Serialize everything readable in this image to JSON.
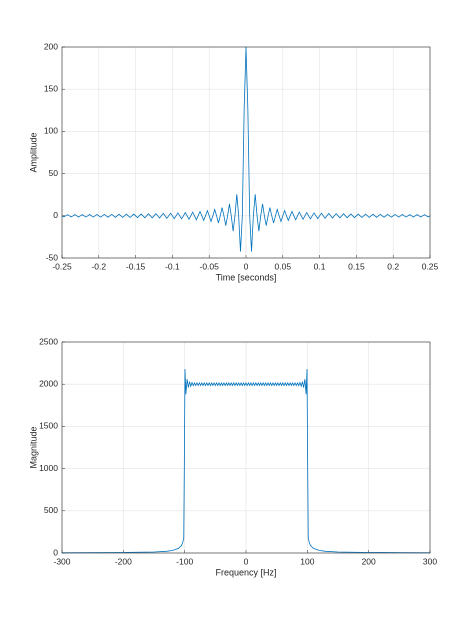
{
  "chart_data": [
    {
      "type": "line",
      "xlabel": "Time [seconds]",
      "ylabel": "Amplitude",
      "color": "#0072bd",
      "grid": true,
      "xlim": [
        -0.25,
        0.25
      ],
      "ylim": [
        -50,
        200
      ],
      "xticks": [
        -0.25,
        -0.2,
        -0.15,
        -0.1,
        -0.05,
        0,
        0.05,
        0.1,
        0.15,
        0.2,
        0.25
      ],
      "yticks": [
        -50,
        0,
        50,
        100,
        150,
        200
      ],
      "x": [
        -0.25,
        -0.2475,
        -0.245,
        -0.2425,
        -0.24,
        -0.2375,
        -0.235,
        -0.2325,
        -0.23,
        -0.2275,
        -0.225,
        -0.2225,
        -0.22,
        -0.2175,
        -0.215,
        -0.2125,
        -0.21,
        -0.2075,
        -0.205,
        -0.2025,
        -0.2,
        -0.1975,
        -0.195,
        -0.1925,
        -0.19,
        -0.1875,
        -0.185,
        -0.1825,
        -0.18,
        -0.1775,
        -0.175,
        -0.1725,
        -0.17,
        -0.1675,
        -0.165,
        -0.1625,
        -0.16,
        -0.1575,
        -0.155,
        -0.1525,
        -0.15,
        -0.1475,
        -0.145,
        -0.1425,
        -0.14,
        -0.1375,
        -0.135,
        -0.1325,
        -0.13,
        -0.1275,
        -0.125,
        -0.1225,
        -0.12,
        -0.1175,
        -0.115,
        -0.1125,
        -0.11,
        -0.1075,
        -0.105,
        -0.1025,
        -0.1,
        -0.0975,
        -0.095,
        -0.0925,
        -0.09,
        -0.0875,
        -0.085,
        -0.0825,
        -0.08,
        -0.0775,
        -0.075,
        -0.0725,
        -0.07,
        -0.0675,
        -0.065,
        -0.0625,
        -0.06,
        -0.0575,
        -0.055,
        -0.0525,
        -0.05,
        -0.0475,
        -0.045,
        -0.0425,
        -0.04,
        -0.0375,
        -0.035,
        -0.0325,
        -0.03,
        -0.0275,
        -0.025,
        -0.0225,
        -0.02,
        -0.0175,
        -0.015,
        -0.0125,
        -0.01,
        -0.0075,
        -0.005,
        -0.0025,
        0,
        0.0025,
        0.005,
        0.0075,
        0.01,
        0.0125,
        0.015,
        0.0175,
        0.02,
        0.0225,
        0.025,
        0.0275,
        0.03,
        0.0325,
        0.035,
        0.0375,
        0.04,
        0.0425,
        0.045,
        0.0475,
        0.05,
        0.0525,
        0.055,
        0.0575,
        0.06,
        0.0625,
        0.065,
        0.0675,
        0.07,
        0.0725,
        0.075,
        0.0775,
        0.08,
        0.0825,
        0.085,
        0.0875,
        0.09,
        0.0925,
        0.095,
        0.0975,
        0.1,
        0.1025,
        0.105,
        0.1075,
        0.11,
        0.1125,
        0.115,
        0.1175,
        0.12,
        0.1225,
        0.125,
        0.1275,
        0.13,
        0.1325,
        0.135,
        0.1375,
        0.14,
        0.1425,
        0.145,
        0.1475,
        0.15,
        0.1525,
        0.155,
        0.1575,
        0.16,
        0.1625,
        0.165,
        0.1675,
        0.17,
        0.1725,
        0.175,
        0.1775,
        0.18,
        0.1825,
        0.185,
        0.1875,
        0.19,
        0.1925,
        0.195,
        0.1975,
        0.2,
        0.2025,
        0.205,
        0.2075,
        0.21,
        0.2125,
        0.215,
        0.2175,
        0.22,
        0.2225,
        0.225,
        0.2275,
        0.23,
        0.2325,
        0.235,
        0.2375,
        0.24,
        0.2425,
        0.245,
        0.2475,
        0.25
      ],
      "values": [
        0,
        -1.3,
        0,
        1.3,
        0,
        -1.3,
        0,
        1.4,
        0,
        -1.4,
        0,
        1.4,
        0,
        -1.5,
        0,
        1.5,
        0,
        -1.5,
        0,
        1.6,
        0,
        -1.6,
        0,
        1.7,
        0,
        -1.7,
        0,
        1.7,
        0,
        -1.8,
        0,
        1.8,
        0,
        -1.9,
        0,
        2,
        0,
        -2,
        0,
        2.1,
        0,
        -2.2,
        0,
        2.2,
        0,
        -2.3,
        0,
        2.4,
        0,
        -2.5,
        0,
        2.6,
        0,
        -2.7,
        0,
        2.8,
        0,
        -3,
        0,
        3.1,
        0,
        -3.3,
        0,
        3.4,
        0,
        -3.6,
        0,
        3.9,
        0,
        -4.1,
        0,
        4.4,
        0,
        -4.7,
        0,
        5.1,
        0,
        -5.5,
        0,
        6.1,
        0,
        -6.7,
        0,
        7.5,
        0,
        -8.5,
        0,
        9.8,
        0,
        -11.6,
        0,
        14.1,
        0,
        -18.2,
        0,
        25.5,
        0,
        -42.4,
        0,
        127.3,
        200,
        127.3,
        0,
        -42.4,
        0,
        25.5,
        0,
        -18.2,
        0,
        14.1,
        0,
        -11.6,
        0,
        9.8,
        0,
        -8.5,
        0,
        7.5,
        0,
        -6.7,
        0,
        6.1,
        0,
        -5.5,
        0,
        5.1,
        0,
        -4.7,
        0,
        4.4,
        0,
        -4.1,
        0,
        3.9,
        0,
        -3.6,
        0,
        3.4,
        0,
        -3.3,
        0,
        3.1,
        0,
        -3,
        0,
        2.8,
        0,
        -2.7,
        0,
        2.6,
        0,
        -2.5,
        0,
        2.4,
        0,
        -2.3,
        0,
        2.2,
        0,
        -2.2,
        0,
        2.1,
        0,
        -2,
        0,
        2,
        0,
        -1.9,
        0,
        1.8,
        0,
        -1.8,
        0,
        1.7,
        0,
        -1.7,
        0,
        1.7,
        0,
        -1.6,
        0,
        1.6,
        0,
        -1.5,
        0,
        1.5,
        0,
        -1.5,
        0,
        1.4,
        0,
        -1.4,
        0,
        1.4,
        0,
        -1.3,
        0,
        1.3,
        0,
        -1.3,
        0
      ]
    },
    {
      "type": "line",
      "xlabel": "Frequency [Hz]",
      "ylabel": "Magnitude",
      "color": "#0072bd",
      "grid": true,
      "xlim": [
        -300,
        300
      ],
      "ylim": [
        0,
        2500
      ],
      "xticks": [
        -300,
        -200,
        -100,
        0,
        100,
        200,
        300
      ],
      "yticks": [
        0,
        500,
        1000,
        1500,
        2000,
        2500
      ],
      "x": [
        -300,
        -250,
        -200,
        -150,
        -130,
        -120,
        -110,
        -105,
        -103,
        -101.5,
        -100.5,
        -99.5,
        -98,
        -96,
        -94,
        -92,
        -90,
        -88,
        -86,
        -84,
        -82,
        -80,
        -78,
        -76,
        -74,
        -72,
        -70,
        -68,
        -66,
        -64,
        -62,
        -60,
        -58,
        -56,
        -54,
        -52,
        -50,
        -48,
        -46,
        -44,
        -42,
        -40,
        -38,
        -36,
        -34,
        -32,
        -30,
        -28,
        -26,
        -24,
        -22,
        -20,
        -18,
        -16,
        -14,
        -12,
        -10,
        -8,
        -6,
        -4,
        -2,
        0,
        2,
        4,
        6,
        8,
        10,
        12,
        14,
        16,
        18,
        20,
        22,
        24,
        26,
        28,
        30,
        32,
        34,
        36,
        38,
        40,
        42,
        44,
        46,
        48,
        50,
        52,
        54,
        56,
        58,
        60,
        62,
        64,
        66,
        68,
        70,
        72,
        74,
        76,
        78,
        80,
        82,
        84,
        86,
        88,
        90,
        92,
        94,
        96,
        98,
        99.5,
        100.5,
        101.5,
        103,
        105,
        110,
        120,
        130,
        150,
        200,
        250,
        300
      ],
      "values": [
        3,
        4,
        6,
        12,
        20,
        30,
        55,
        90,
        130,
        175,
        1100,
        2180,
        1880,
        2060,
        1960,
        2030,
        1976,
        2020,
        1983,
        2015,
        1985,
        2015,
        1985,
        2015,
        1985,
        2015,
        1985,
        2015,
        1985,
        2015,
        1985,
        2015,
        1985,
        2015,
        1985,
        2015,
        1985,
        2015,
        1985,
        2015,
        1985,
        2015,
        1985,
        2015,
        1985,
        2015,
        1985,
        2015,
        1985,
        2015,
        1985,
        2015,
        1985,
        2015,
        1985,
        2015,
        1985,
        2015,
        1985,
        2015,
        1985,
        2015,
        1985,
        2015,
        1985,
        2015,
        1985,
        2015,
        1985,
        2015,
        1985,
        2015,
        1985,
        2015,
        1985,
        2015,
        1985,
        2015,
        1985,
        2015,
        1985,
        2015,
        1985,
        2015,
        1985,
        2015,
        1985,
        2015,
        1985,
        2015,
        1985,
        2015,
        1985,
        2015,
        1985,
        2015,
        1985,
        2015,
        1985,
        2015,
        1985,
        2015,
        1985,
        2015,
        1983,
        2020,
        1976,
        2030,
        1960,
        2060,
        1880,
        2180,
        1100,
        175,
        130,
        90,
        55,
        30,
        20,
        12,
        6,
        4,
        3
      ]
    }
  ]
}
